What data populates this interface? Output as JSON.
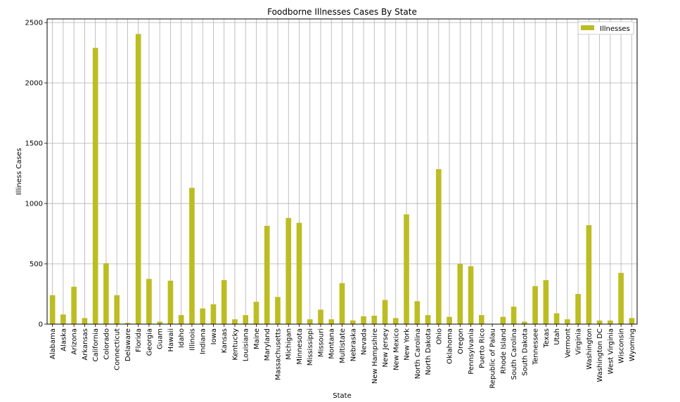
{
  "chart_data": {
    "type": "bar",
    "title": "Foodborne Illnesses Cases By State",
    "xlabel": "State",
    "ylabel": "Illiness Cases",
    "ylim": [
      0,
      2530
    ],
    "yticks": [
      0,
      500,
      1000,
      1500,
      2000,
      2500
    ],
    "grid": true,
    "legend_position": "top-right",
    "bar_color": "#bcbd22",
    "categories": [
      "Alabama",
      "Alaska",
      "Arizona",
      "Arkansas",
      "California",
      "Colorado",
      "Connecticut",
      "Delaware",
      "Florida",
      "Georgia",
      "Guam",
      "Hawaii",
      "Idaho",
      "Illinois",
      "Indiana",
      "Iowa",
      "Kansas",
      "Kentucky",
      "Louisiana",
      "Maine",
      "Maryland",
      "Massachusetts",
      "Michigan",
      "Minnesota",
      "Mississippi",
      "Missouri",
      "Montana",
      "Multistate",
      "Nebraska",
      "Nevada",
      "New Hampshire",
      "New Jersey",
      "New Mexico",
      "New York",
      "North Carolina",
      "North Dakota",
      "Ohio",
      "Oklahoma",
      "Oregon",
      "Pennsylvania",
      "Puerto Rico",
      "Republic of Palau",
      "Rhode Island",
      "South Carolina",
      "South Dakota",
      "Tennessee",
      "Texas",
      "Utah",
      "Vermont",
      "Virginia",
      "Washington",
      "Washington DC",
      "West Virginia",
      "Wisconsin",
      "Wyoming"
    ],
    "series": [
      {
        "name": "Illnesses",
        "values": [
          240,
          80,
          310,
          50,
          2290,
          505,
          240,
          10,
          2405,
          375,
          20,
          360,
          75,
          1130,
          130,
          165,
          365,
          40,
          75,
          185,
          815,
          225,
          880,
          840,
          40,
          120,
          40,
          340,
          30,
          65,
          70,
          200,
          50,
          910,
          190,
          75,
          1285,
          60,
          500,
          480,
          75,
          0,
          60,
          145,
          20,
          315,
          365,
          90,
          40,
          250,
          820,
          30,
          30,
          425,
          50
        ]
      }
    ]
  }
}
